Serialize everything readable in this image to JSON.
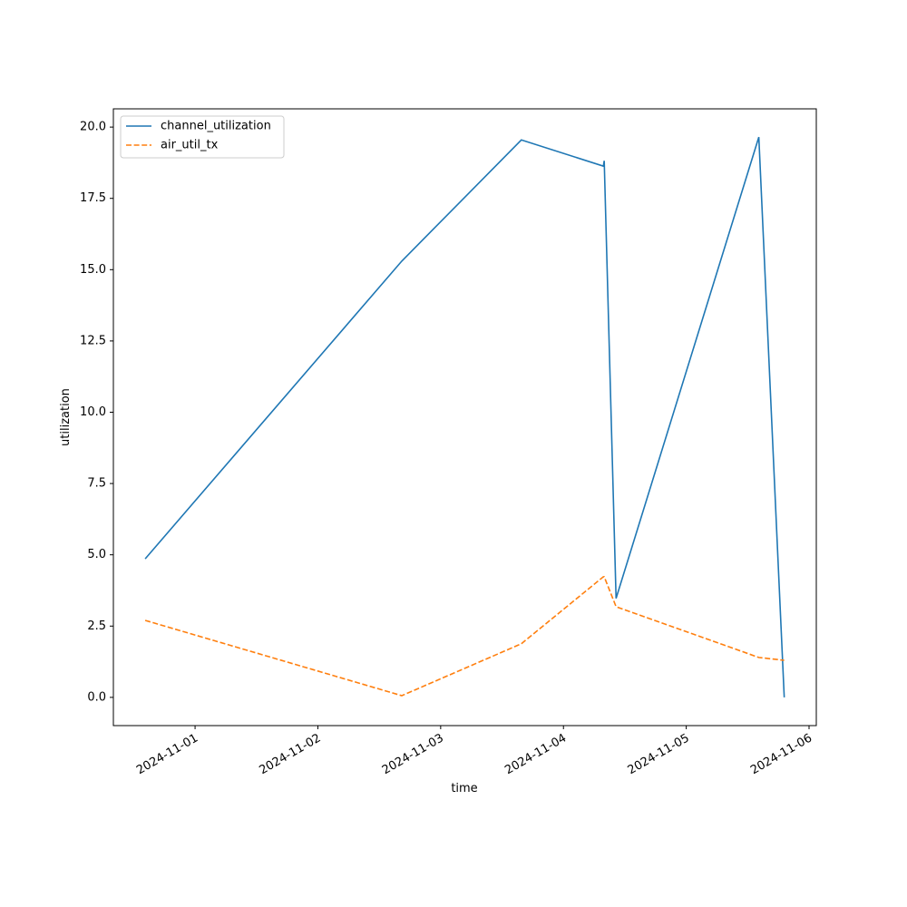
{
  "chart_data": {
    "type": "line",
    "x_label": "time",
    "y_label": "utilization",
    "x": [
      "2024-10-31T14:15",
      "2024-11-02T16:24",
      "2024-11-03T15:46",
      "2024-11-04T07:48",
      "2024-11-04T07:58",
      "2024-11-04T10:17",
      "2024-11-05T14:11",
      "2024-11-05T19:09"
    ],
    "series": [
      {
        "name": "channel_utilization",
        "color": "#1f77b4",
        "linestyle": "solid",
        "values": [
          4.86,
          15.3,
          19.55,
          18.63,
          18.82,
          3.47,
          19.65,
          0.0
        ]
      },
      {
        "name": "air_util_tx",
        "color": "#ff7f0e",
        "linestyle": "dashed",
        "values": [
          2.7,
          0.06,
          1.88,
          4.23,
          4.23,
          3.18,
          1.4,
          1.3
        ]
      }
    ],
    "xlim": [
      "2024-10-31T08:02",
      "2024-11-06T01:25"
    ],
    "xticks": [
      "2024-11-01",
      "2024-11-02",
      "2024-11-03",
      "2024-11-04",
      "2024-11-05",
      "2024-11-06"
    ],
    "ylim": [
      -0.99,
      20.64
    ],
    "yticks": [
      {
        "value": 0,
        "label": "0.0"
      },
      2.5,
      {
        "value": 5,
        "label": "5.0"
      },
      7.5,
      {
        "value": 10,
        "label": "10.0"
      },
      12.5,
      {
        "value": 15,
        "label": "15.0"
      },
      17.5,
      {
        "value": 20,
        "label": "20.0"
      }
    ],
    "legend": "upper left"
  }
}
